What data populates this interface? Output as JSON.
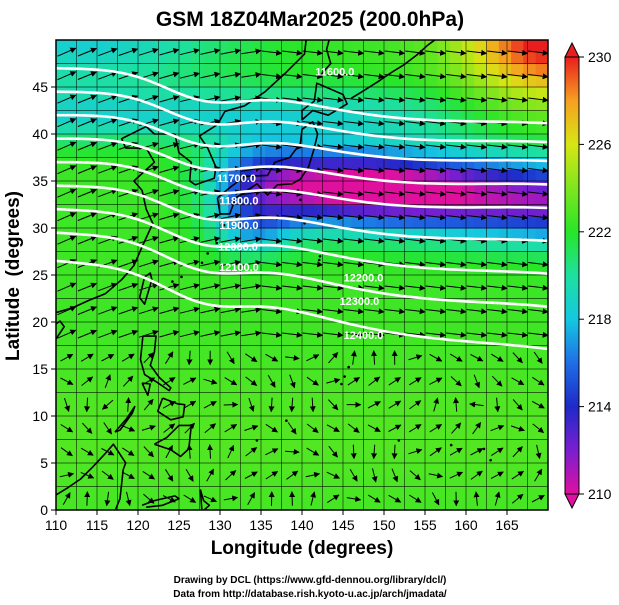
{
  "chart_data": {
    "type": "heatmap",
    "title": "GSM 18Z04Mar2025 (200.0hPa)",
    "xlabel": "Longitude (degrees)",
    "ylabel": "Latitude  (degrees)",
    "xlim": [
      110,
      170
    ],
    "ylim": [
      0,
      50
    ],
    "x_ticks": [
      "110",
      "115",
      "120",
      "125",
      "130",
      "135",
      "140",
      "145",
      "150",
      "155",
      "160",
      "165"
    ],
    "y_ticks": [
      "0",
      "5",
      "10",
      "15",
      "20",
      "25",
      "30",
      "35",
      "40",
      "45"
    ],
    "colorbar": {
      "label_values": [
        "230",
        "226",
        "222",
        "218",
        "214",
        "210"
      ],
      "range": [
        210,
        230
      ],
      "stops": [
        {
          "value": 210,
          "color": "#e0109e"
        },
        {
          "value": 212,
          "color": "#7a1fd0"
        },
        {
          "value": 214,
          "color": "#1e2ac8"
        },
        {
          "value": 216,
          "color": "#1f6ee6"
        },
        {
          "value": 218,
          "color": "#14c8e0"
        },
        {
          "value": 220,
          "color": "#1ee0a0"
        },
        {
          "value": 222,
          "color": "#28e628"
        },
        {
          "value": 224,
          "color": "#7ee61e"
        },
        {
          "value": 226,
          "color": "#d7e614"
        },
        {
          "value": 228,
          "color": "#f6a020"
        },
        {
          "value": 230,
          "color": "#e81e1e"
        }
      ]
    },
    "contours": [
      {
        "label": "11600.0",
        "lat_west": 47.0,
        "lat_east": 40.5
      },
      {
        "label": "11700.0",
        "lat_west": 44.5,
        "lat_east": 38.5
      },
      {
        "label": "11800.0",
        "lat_west": 42.0,
        "lat_east": 36.5
      },
      {
        "label": "11900.0",
        "lat_west": 39.5,
        "lat_east": 34.0
      },
      {
        "label": "12000.0",
        "lat_west": 37.0,
        "lat_east": 31.5
      },
      {
        "label": "12100.0",
        "lat_west": 34.5,
        "lat_east": 28.0
      },
      {
        "label": "12200.0",
        "lat_west": 32.0,
        "lat_east": 24.5
      },
      {
        "label": "12300.0",
        "lat_west": 29.5,
        "lat_east": 21.0
      },
      {
        "label": "12400.0",
        "lat_west": 26.5,
        "lat_east": 16.5
      }
    ],
    "labeled_contours": [
      {
        "label": "11600.0",
        "lon": 144.0,
        "lat": 46.2
      },
      {
        "label": "11700.0",
        "lon": 132.0,
        "lat": 34.9
      },
      {
        "label": "11800.0",
        "lon": 132.3,
        "lat": 32.5
      },
      {
        "label": "11900.0",
        "lon": 132.3,
        "lat": 29.9
      },
      {
        "label": "12000.0",
        "lon": 132.2,
        "lat": 27.6
      },
      {
        "label": "12100.0",
        "lon": 132.3,
        "lat": 25.4
      },
      {
        "label": "12200.0",
        "lon": 147.5,
        "lat": 24.3
      },
      {
        "label": "12300.0",
        "lon": 147.0,
        "lat": 21.8
      },
      {
        "label": "12400.0",
        "lon": 147.5,
        "lat": 18.2
      }
    ],
    "temperature_features": [
      {
        "name": "warm-northeast",
        "lon": 168,
        "lat": 50,
        "value": 230
      },
      {
        "name": "cold-core-jet",
        "lon": 150,
        "lat": 34,
        "value": 210
      },
      {
        "name": "cold-band-jet-entrance",
        "lon": 135,
        "lat": 30,
        "value": 213
      },
      {
        "name": "cool-northwest",
        "lon": 112,
        "lat": 49,
        "value": 218
      },
      {
        "name": "tropics",
        "lon": 140,
        "lat": 8,
        "value": 222
      }
    ]
  },
  "credits": {
    "line1": "Drawing by DCL (https://www.gfd-dennou.org/library/dcl/)",
    "line2": "Data from http://database.rish.kyoto-u.ac.jp/arch/jmadata/"
  }
}
